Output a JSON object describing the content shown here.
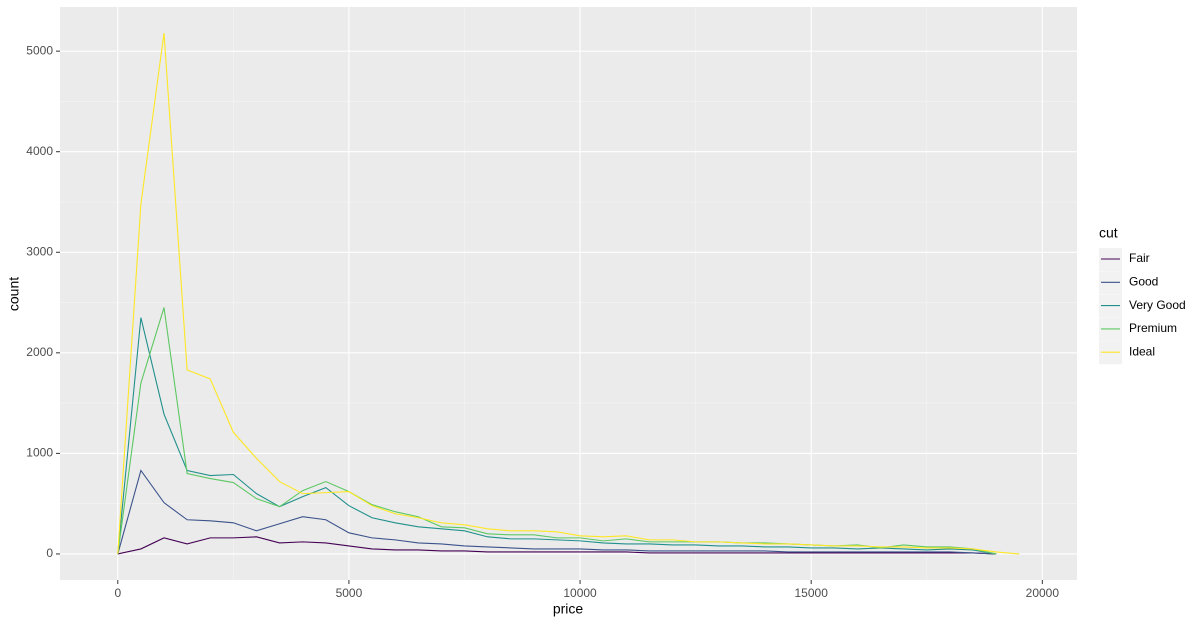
{
  "chart_data": {
    "type": "line",
    "x_label": "price",
    "y_label": "count",
    "legend_title": "cut",
    "legend_position": "right",
    "grid": true,
    "xlim": [
      -1250,
      20750
    ],
    "ylim": [
      -259,
      5439
    ],
    "xticks": [
      0,
      5000,
      10000,
      15000,
      20000
    ],
    "yticks": [
      0,
      1000,
      2000,
      3000,
      4000,
      5000
    ],
    "xminor": [
      2500,
      7500,
      12500,
      17500
    ],
    "yminor": [
      500,
      1500,
      2500,
      3500,
      4500
    ],
    "x": [
      0,
      500,
      1000,
      1500,
      2000,
      2500,
      3000,
      3500,
      4000,
      4500,
      5000,
      5500,
      6000,
      6500,
      7000,
      7500,
      8000,
      8500,
      9000,
      9500,
      10000,
      10500,
      11000,
      11500,
      12000,
      12500,
      13000,
      13500,
      14000,
      14500,
      15000,
      15500,
      16000,
      16500,
      17000,
      17500,
      18000,
      18500,
      19000,
      19500
    ],
    "series": [
      {
        "name": "Fair",
        "color": "#440154",
        "values": [
          0,
          50,
          160,
          100,
          160,
          160,
          170,
          110,
          120,
          110,
          80,
          50,
          40,
          40,
          30,
          30,
          20,
          20,
          20,
          20,
          20,
          20,
          20,
          10,
          10,
          10,
          10,
          10,
          10,
          10,
          10,
          10,
          10,
          10,
          10,
          10,
          10,
          10,
          0,
          null
        ]
      },
      {
        "name": "Good",
        "color": "#3B528B",
        "values": [
          0,
          830,
          510,
          340,
          330,
          310,
          230,
          300,
          370,
          340,
          210,
          160,
          140,
          110,
          100,
          80,
          70,
          60,
          50,
          50,
          50,
          40,
          40,
          30,
          30,
          30,
          30,
          30,
          30,
          20,
          20,
          20,
          20,
          20,
          20,
          20,
          20,
          10,
          0,
          null
        ]
      },
      {
        "name": "Very Good",
        "color": "#21908C",
        "values": [
          0,
          2350,
          1390,
          830,
          780,
          790,
          600,
          470,
          570,
          660,
          480,
          360,
          310,
          270,
          250,
          230,
          170,
          150,
          150,
          140,
          130,
          110,
          100,
          100,
          90,
          90,
          80,
          80,
          70,
          70,
          60,
          60,
          50,
          60,
          50,
          40,
          50,
          40,
          0,
          null
        ]
      },
      {
        "name": "Premium",
        "color": "#5DC863",
        "values": [
          0,
          1700,
          2450,
          800,
          750,
          710,
          550,
          470,
          630,
          720,
          620,
          490,
          420,
          370,
          270,
          260,
          200,
          190,
          190,
          160,
          160,
          130,
          150,
          120,
          120,
          120,
          120,
          110,
          110,
          100,
          90,
          80,
          90,
          60,
          90,
          70,
          70,
          50,
          0,
          null
        ]
      },
      {
        "name": "Ideal",
        "color": "#FDE725",
        "values": [
          0,
          3480,
          5180,
          1830,
          1740,
          1210,
          950,
          720,
          600,
          610,
          620,
          480,
          400,
          360,
          310,
          290,
          250,
          230,
          230,
          220,
          180,
          170,
          180,
          140,
          140,
          120,
          120,
          110,
          100,
          100,
          90,
          80,
          80,
          70,
          70,
          60,
          60,
          50,
          20,
          0
        ]
      }
    ]
  }
}
